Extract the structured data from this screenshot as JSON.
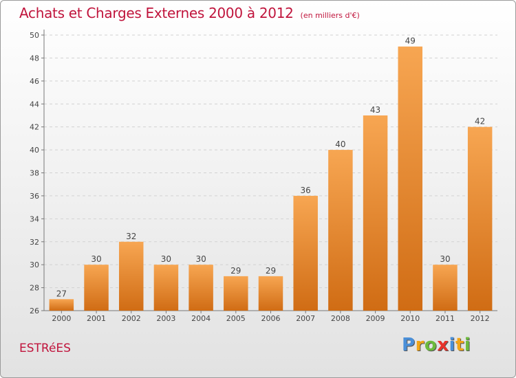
{
  "header": {
    "title": "Achats et Charges Externes 2000 à 2012",
    "subtitle": "(en milliers d'€)"
  },
  "commune": "ESTRéES",
  "logo": {
    "letters": [
      {
        "char": "P",
        "color": "#4a8fd8"
      },
      {
        "char": "r",
        "color": "#f2a516"
      },
      {
        "char": "o",
        "color": "#6cbb3c"
      },
      {
        "char": "x",
        "color": "#e8332a"
      },
      {
        "char": "i",
        "color": "#4a8fd8"
      },
      {
        "char": "t",
        "color": "#f2a516"
      },
      {
        "char": "i",
        "color": "#6cbb3c"
      }
    ]
  },
  "chart_data": {
    "type": "bar",
    "title": "Achats et Charges Externes 2000 à 2012",
    "subtitle": "(en milliers d'€)",
    "categories": [
      "2000",
      "2001",
      "2002",
      "2003",
      "2004",
      "2005",
      "2006",
      "2007",
      "2008",
      "2009",
      "2010",
      "2011",
      "2012"
    ],
    "values": [
      27,
      30,
      32,
      30,
      30,
      29,
      29,
      36,
      40,
      43,
      49,
      30,
      42
    ],
    "ylim": [
      26,
      50
    ],
    "yticks": [
      26,
      28,
      30,
      32,
      34,
      36,
      38,
      40,
      42,
      44,
      46,
      48,
      50
    ],
    "grid": true,
    "bar_color_top": "#f7a652",
    "bar_color_bottom": "#d06c14"
  }
}
